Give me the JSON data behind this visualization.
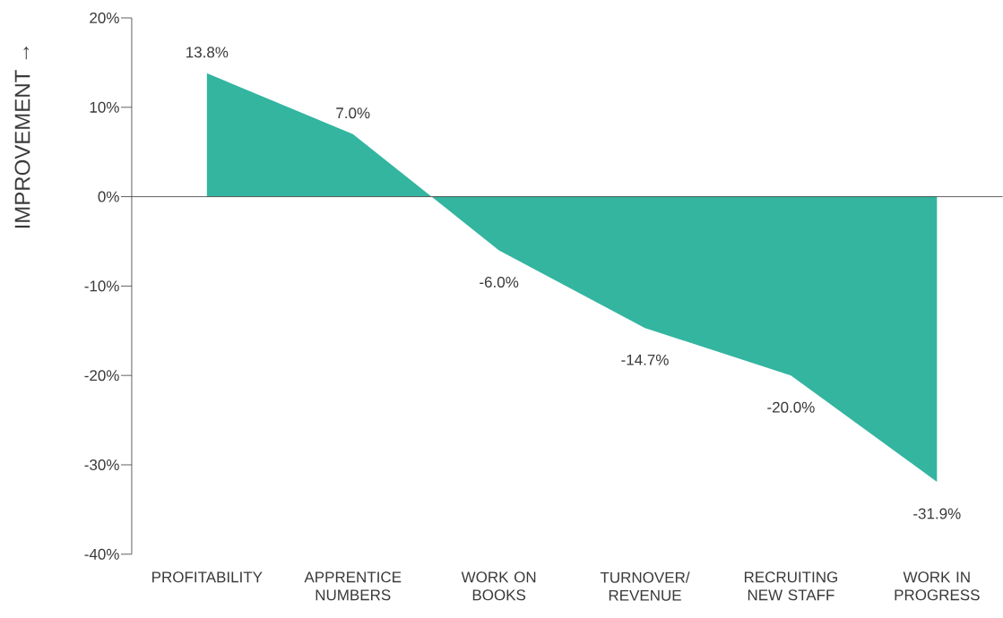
{
  "chart_data": {
    "type": "area",
    "ylabel": "IMPROVEMENT →",
    "categories": [
      "PROFITABILITY",
      "APPRENTICE NUMBERS",
      "WORK ON BOOKS",
      "TURNOVER/ REVENUE",
      "RECRUITING NEW STAFF",
      "WORK IN PROGRESS"
    ],
    "values": [
      13.8,
      7.0,
      -6.0,
      -14.7,
      -20.0,
      -31.9
    ],
    "value_labels": [
      "13.8%",
      "7.0%",
      "-6.0%",
      "-14.7%",
      "-20.0%",
      "-31.9%"
    ],
    "color": "#33b5a0",
    "ylim": [
      -40,
      20
    ],
    "yticks": [
      {
        "value": -40,
        "label": "-40%"
      },
      {
        "value": -30,
        "label": "-30%"
      },
      {
        "value": -20,
        "label": "-20%"
      },
      {
        "value": -10,
        "label": "-10%"
      },
      {
        "value": 0,
        "label": "0%"
      },
      {
        "value": 10,
        "label": "10%"
      },
      {
        "value": 20,
        "label": "20%"
      }
    ]
  }
}
